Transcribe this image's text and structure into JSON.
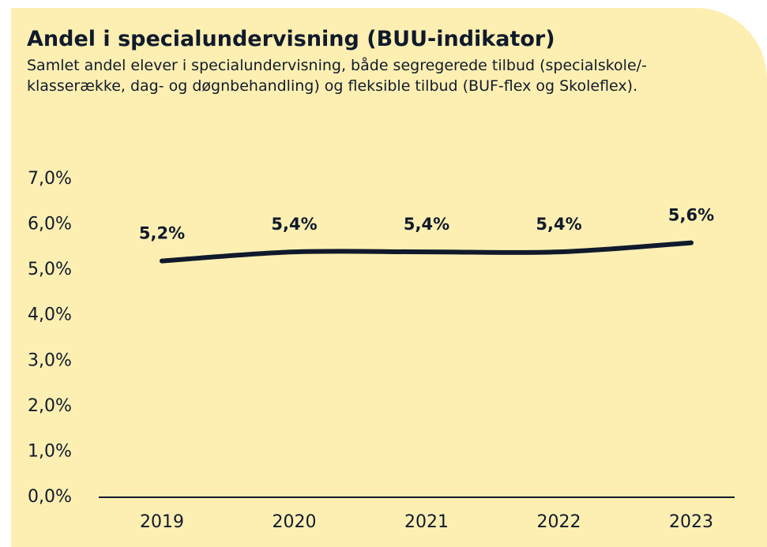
{
  "chart_data": {
    "type": "line",
    "title": "Andel i specialundervisning (BUU-indikator)",
    "subtitle": "Samlet andel elever i specialundervisning, både segregerede tilbud (specialskole/-klasserække, dag- og døgnbehandling) og fleksible tilbud (BUF-flex og Skoleflex).",
    "categories": [
      "2019",
      "2020",
      "2021",
      "2022",
      "2023"
    ],
    "series": [
      {
        "name": "Andel i specialundervisning",
        "color": "#101a2c",
        "values": [
          5.2,
          5.4,
          5.4,
          5.4,
          5.6
        ],
        "value_labels": [
          "5,2%",
          "5,4%",
          "5,4%",
          "5,4%",
          "5,6%"
        ]
      }
    ],
    "ylim": [
      0,
      7
    ],
    "yticks": [
      {
        "value": 0,
        "label": "0,0%"
      },
      {
        "value": 1,
        "label": "1,0%"
      },
      {
        "value": 2,
        "label": "2,0%"
      },
      {
        "value": 3,
        "label": "3,0%"
      },
      {
        "value": 4,
        "label": "4,0%"
      },
      {
        "value": 5,
        "label": "5,0%"
      },
      {
        "value": 6,
        "label": "6,0%"
      },
      {
        "value": 7,
        "label": "7,0%"
      }
    ],
    "grid": false
  }
}
